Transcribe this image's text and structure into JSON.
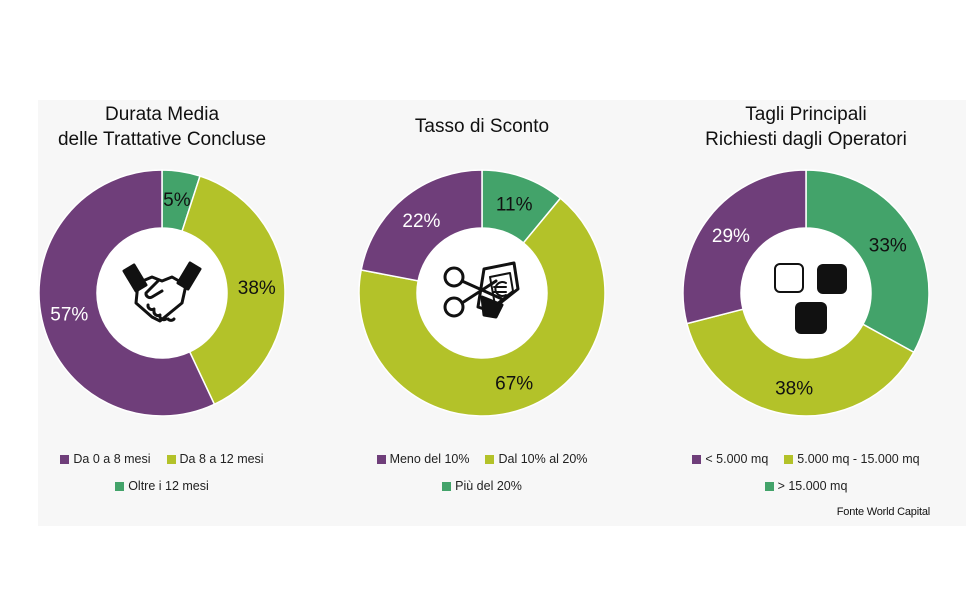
{
  "colors": {
    "purple": "#6f3e7a",
    "lime": "#b3c229",
    "green": "#43a36a"
  },
  "chart_data": [
    {
      "type": "pie",
      "donut": true,
      "title": "Durata Media\ndelle Trattative Concluse",
      "center_icon": "handshake-icon",
      "slices": [
        {
          "label": "Oltre i 12 mesi",
          "value": 5,
          "display": "5%",
          "color": "#43a36a"
        },
        {
          "label": "Da 8 a 12 mesi",
          "value": 38,
          "display": "38%",
          "color": "#b3c229"
        },
        {
          "label": "Da 0 a 8 mesi",
          "value": 57,
          "display": "57%",
          "color": "#6f3e7a"
        }
      ],
      "legend_rows": [
        [
          "Da 0 a 8 mesi",
          "Da 8 a 12 mesi"
        ],
        [
          "Oltre i 12 mesi"
        ]
      ],
      "legend_position": "bottom"
    },
    {
      "type": "pie",
      "donut": true,
      "title": "Tasso di Sconto",
      "center_icon": "scissors-cutting-banknote-icon",
      "slices": [
        {
          "label": "Più del 20%",
          "value": 11,
          "display": "11%",
          "color": "#43a36a"
        },
        {
          "label": "Dal 10% al 20%",
          "value": 67,
          "display": "67%",
          "color": "#b3c229"
        },
        {
          "label": "Meno del 10%",
          "value": 22,
          "display": "22%",
          "color": "#6f3e7a"
        }
      ],
      "legend_rows": [
        [
          "Meno del 10%",
          "Dal 10% al 20%"
        ],
        [
          "Più del 20%"
        ]
      ],
      "legend_position": "bottom"
    },
    {
      "type": "pie",
      "donut": true,
      "title": "Tagli Principali\nRichiesti dagli Operatori",
      "center_icon": "size-squares-icon",
      "slices": [
        {
          "label": "> 15.000 mq",
          "value": 33,
          "display": "33%",
          "color": "#43a36a"
        },
        {
          "label": "5.000 mq - 15.000 mq",
          "value": 38,
          "display": "38%",
          "color": "#b3c229"
        },
        {
          "label": "< 5.000 mq",
          "value": 29,
          "display": "29%",
          "color": "#6f3e7a"
        }
      ],
      "legend_rows": [
        [
          "< 5.000 mq",
          "5.000 mq - 15.000 mq"
        ],
        [
          "> 15.000 mq"
        ]
      ],
      "legend_position": "bottom"
    }
  ],
  "source": "Fonte World Capital"
}
